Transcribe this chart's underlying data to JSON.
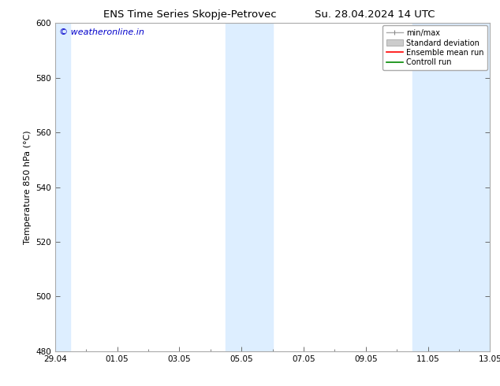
{
  "title_left": "ENS Time Series Skopje-Petrovec",
  "title_right": "Su. 28.04.2024 14 UTC",
  "ylabel": "Temperature 850 hPa (°C)",
  "ylim": [
    480,
    600
  ],
  "yticks": [
    480,
    500,
    520,
    540,
    560,
    580,
    600
  ],
  "xtick_labels": [
    "29.04",
    "01.05",
    "03.05",
    "05.05",
    "07.05",
    "09.05",
    "11.05",
    "13.05"
  ],
  "xtick_positions": [
    0,
    2,
    4,
    6,
    8,
    10,
    12,
    14
  ],
  "num_minor_ticks": 1,
  "shaded_columns": [
    {
      "x_start": 0.0,
      "x_end": 0.5,
      "color": "#ddeeff"
    },
    {
      "x_start": 5.5,
      "x_end": 7.0,
      "color": "#ddeeff"
    },
    {
      "x_start": 11.5,
      "x_end": 14.0,
      "color": "#ddeeff"
    }
  ],
  "watermark_text": "© weatheronline.in",
  "watermark_color": "#0000cc",
  "legend_labels": [
    "min/max",
    "Standard deviation",
    "Ensemble mean run",
    "Controll run"
  ],
  "legend_line_colors": [
    "#aaaaaa",
    "#cccccc",
    "#ff0000",
    "#008800"
  ],
  "background_color": "#ffffff",
  "plot_bg_color": "#ffffff",
  "spine_color": "#aaaaaa",
  "title_fontsize": 9.5,
  "ylabel_fontsize": 8,
  "tick_fontsize": 7.5,
  "legend_fontsize": 7,
  "watermark_fontsize": 8
}
